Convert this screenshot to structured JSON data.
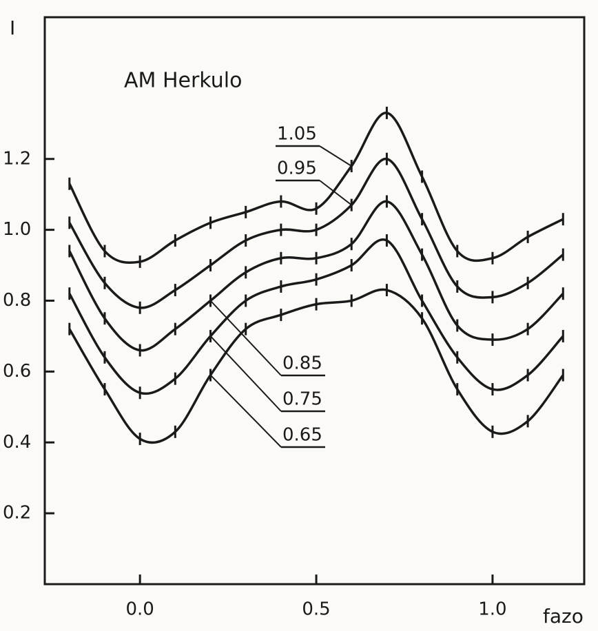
{
  "chart_data": {
    "type": "line",
    "title": "AM Herkulo",
    "y_label": "I",
    "x_label": "fazo",
    "x": [
      -0.2,
      -0.1,
      0.0,
      0.1,
      0.2,
      0.3,
      0.4,
      0.5,
      0.6,
      0.7,
      0.8,
      0.9,
      1.0,
      1.1,
      1.2
    ],
    "series": [
      {
        "name": "1.05",
        "color": "#1a1a1a",
        "values": [
          1.13,
          0.94,
          0.91,
          0.97,
          1.02,
          1.05,
          1.08,
          1.06,
          1.18,
          1.33,
          1.15,
          0.94,
          0.92,
          0.98,
          1.03
        ]
      },
      {
        "name": "0.95",
        "color": "#1a1a1a",
        "values": [
          1.02,
          0.85,
          0.78,
          0.83,
          0.9,
          0.97,
          1.0,
          1.0,
          1.07,
          1.2,
          1.03,
          0.84,
          0.81,
          0.85,
          0.93
        ]
      },
      {
        "name": "0.85",
        "color": "#1a1a1a",
        "values": [
          0.94,
          0.75,
          0.66,
          0.72,
          0.8,
          0.88,
          0.92,
          0.92,
          0.96,
          1.08,
          0.93,
          0.73,
          0.69,
          0.72,
          0.82
        ]
      },
      {
        "name": "0.75",
        "color": "#1a1a1a",
        "values": [
          0.82,
          0.64,
          0.54,
          0.58,
          0.7,
          0.8,
          0.84,
          0.86,
          0.9,
          0.97,
          0.8,
          0.64,
          0.55,
          0.59,
          0.7
        ]
      },
      {
        "name": "0.65",
        "color": "#1a1a1a",
        "values": [
          0.72,
          0.55,
          0.41,
          0.43,
          0.59,
          0.72,
          0.76,
          0.79,
          0.8,
          0.83,
          0.75,
          0.55,
          0.43,
          0.46,
          0.59
        ]
      }
    ],
    "xlim": [
      -0.27,
      1.26
    ],
    "xticks": [
      {
        "value": 0,
        "label": "0.0"
      },
      0.5,
      {
        "value": 1,
        "label": "1.0"
      }
    ],
    "ylim": [
      0,
      1.6
    ],
    "yticks": [
      0.2,
      0.4,
      0.6,
      0.8,
      {
        "value": 1,
        "label": "1.0"
      },
      1.2
    ],
    "grid": false
  }
}
